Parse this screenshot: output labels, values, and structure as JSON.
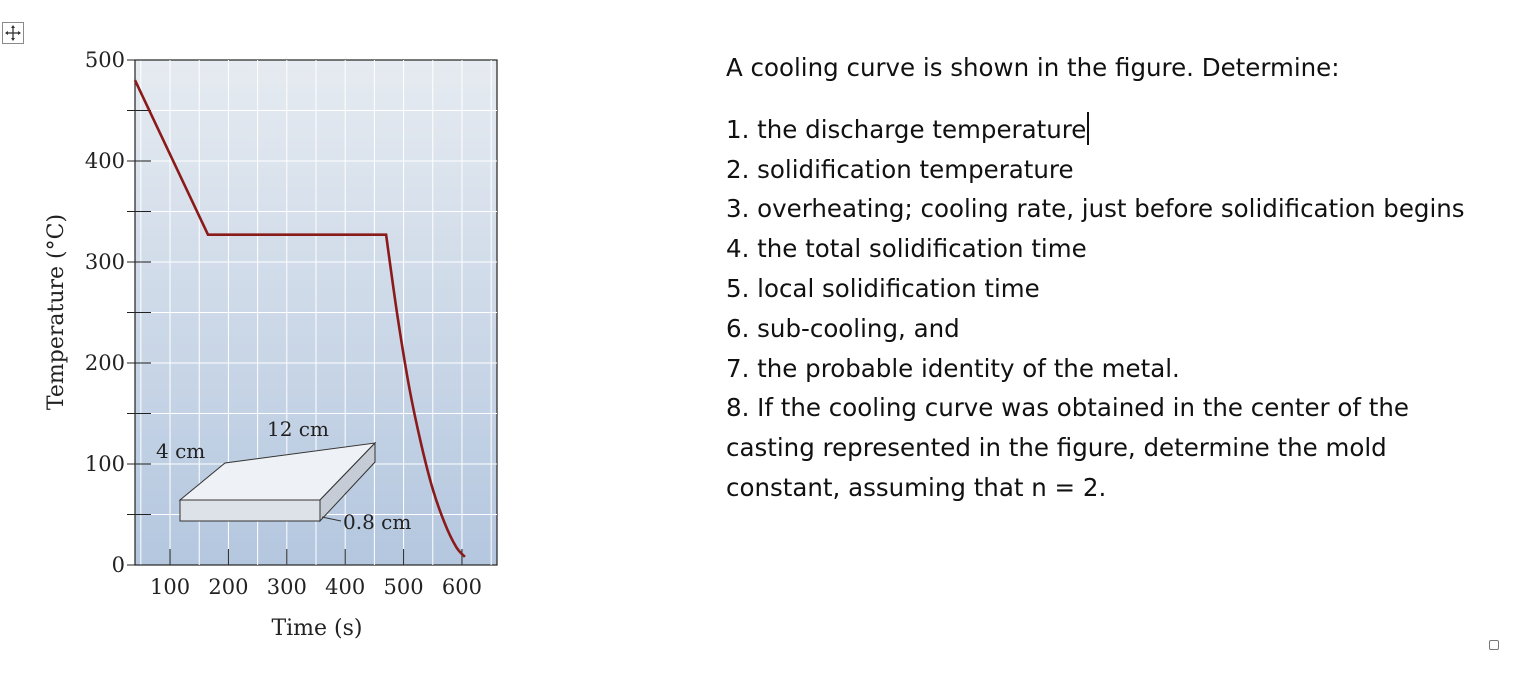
{
  "question": {
    "intro": "A cooling curve is shown in the figure. Determine:",
    "items": [
      "1. the discharge temperature",
      "2. solidification temperature",
      "3. overheating; cooling rate, just before solidification begins",
      "4. the total solidification time",
      "5. local solidification time",
      "6. sub-cooling, and",
      "7. the probable identity of the metal.",
      "8. If the cooling curve was obtained in the center of the casting represented in the figure, determine the mold constant, assuming that n = 2."
    ]
  },
  "chart_data": {
    "type": "line",
    "xlabel": "Time (s)",
    "ylabel": "Temperature (°C)",
    "xlim": [
      40,
      660
    ],
    "ylim": [
      0,
      500
    ],
    "xticks": [
      100,
      200,
      300,
      400,
      500,
      600
    ],
    "yticks": [
      0,
      100,
      200,
      300,
      400,
      500
    ],
    "grid": true,
    "series": [
      {
        "color": "#8b1a1a",
        "x": [
          40,
          165,
          470,
          490,
          510,
          530,
          550,
          570,
          590,
          605
        ],
        "y": [
          480,
          327,
          327,
          245,
          175,
          120,
          75,
          42,
          18,
          8
        ]
      }
    ],
    "annotations": [
      "4 cm",
      "12 cm",
      "0.8 cm"
    ]
  }
}
